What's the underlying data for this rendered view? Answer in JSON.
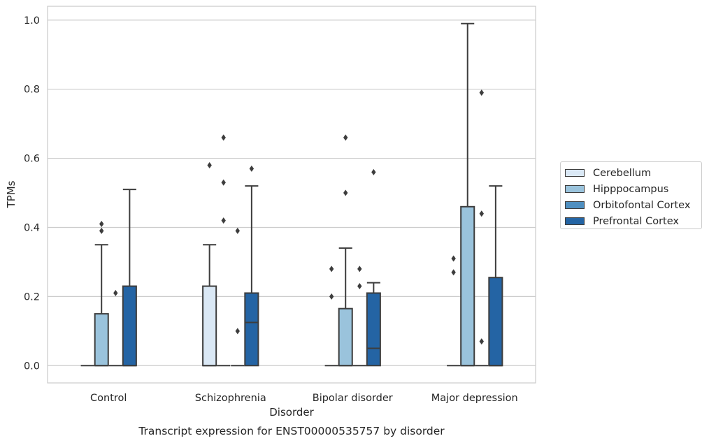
{
  "chart_data": {
    "type": "box",
    "caption": "Transcript expression for ENST00000535757 by disorder",
    "xlabel": "Disorder",
    "ylabel": "TPMs",
    "ylim": [
      -0.05,
      1.04
    ],
    "yticks": [
      0.0,
      0.2,
      0.4,
      0.6,
      0.8,
      1.0
    ],
    "ytick_labels": [
      "0.0",
      "0.2",
      "0.4",
      "0.6",
      "0.8",
      "1.0"
    ],
    "grid": "horizontal",
    "legend_position": "center-right-outside",
    "categories": [
      "Control",
      "Schizophrenia",
      "Bipolar disorder",
      "Major depression"
    ],
    "series": [
      {
        "name": "Cerebellum",
        "color": "#dae8f5",
        "boxes": [
          {
            "q1": 0,
            "median": 0,
            "q3": 0,
            "whislo": 0,
            "whishi": 0,
            "fliers": []
          },
          {
            "q1": 0,
            "median": 0,
            "q3": 0.23,
            "whislo": 0,
            "whishi": 0.35,
            "fliers": [
              0.58
            ]
          },
          {
            "q1": 0,
            "median": 0,
            "q3": 0,
            "whislo": 0,
            "whishi": 0,
            "fliers": [
              0.2,
              0.28
            ]
          },
          {
            "q1": 0,
            "median": 0,
            "q3": 0,
            "whislo": 0,
            "whishi": 0,
            "fliers": [
              0.27,
              0.31
            ]
          }
        ]
      },
      {
        "name": "Hipppocampus",
        "color": "#9ac3dc",
        "boxes": [
          {
            "q1": 0,
            "median": 0,
            "q3": 0.15,
            "whislo": 0,
            "whishi": 0.35,
            "fliers": [
              0.39,
              0.41
            ]
          },
          {
            "q1": 0,
            "median": 0,
            "q3": 0,
            "whislo": 0,
            "whishi": 0,
            "fliers": [
              0.42,
              0.53,
              0.66
            ]
          },
          {
            "q1": 0,
            "median": 0,
            "q3": 0.165,
            "whislo": 0,
            "whishi": 0.34,
            "fliers": [
              0.5,
              0.66
            ]
          },
          {
            "q1": 0,
            "median": 0,
            "q3": 0.46,
            "whislo": 0,
            "whishi": 0.99,
            "fliers": []
          }
        ]
      },
      {
        "name": "Orbitofontal Cortex",
        "color": "#4f8fc0",
        "boxes": [
          {
            "q1": 0,
            "median": 0,
            "q3": 0,
            "whislo": 0,
            "whishi": 0,
            "fliers": [
              0.21
            ]
          },
          {
            "q1": 0,
            "median": 0,
            "q3": 0,
            "whislo": 0,
            "whishi": 0,
            "fliers": [
              0.1,
              0.39
            ]
          },
          {
            "q1": 0,
            "median": 0,
            "q3": 0,
            "whislo": 0,
            "whishi": 0,
            "fliers": [
              0.23,
              0.28
            ]
          },
          {
            "q1": 0,
            "median": 0,
            "q3": 0,
            "whislo": 0,
            "whishi": 0,
            "fliers": [
              0.07,
              0.44,
              0.79
            ]
          }
        ]
      },
      {
        "name": "Prefrontal Cortex",
        "color": "#2464a4",
        "boxes": [
          {
            "q1": 0,
            "median": 0,
            "q3": 0.23,
            "whislo": 0,
            "whishi": 0.51,
            "fliers": []
          },
          {
            "q1": 0,
            "median": 0.125,
            "q3": 0.21,
            "whislo": 0,
            "whishi": 0.52,
            "fliers": [
              0.57
            ]
          },
          {
            "q1": 0,
            "median": 0.05,
            "q3": 0.21,
            "whislo": 0,
            "whishi": 0.24,
            "fliers": [
              0.56
            ]
          },
          {
            "q1": 0,
            "median": 0,
            "q3": 0.255,
            "whislo": 0,
            "whishi": 0.52,
            "fliers": []
          }
        ]
      }
    ]
  }
}
